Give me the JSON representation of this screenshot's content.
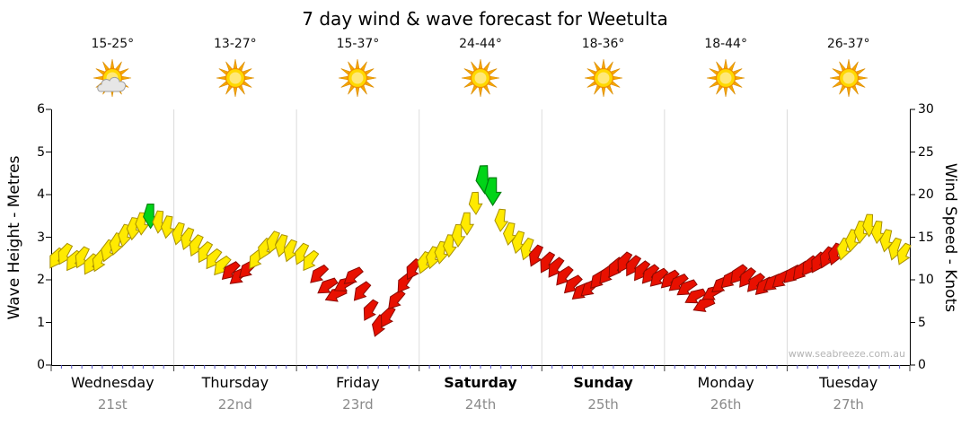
{
  "title": "7 day wind & wave forecast for Weetulta",
  "watermark": "www.seabreeze.com.au",
  "days": [
    {
      "name": "Wednesday",
      "date": "21st",
      "temp": "15-25°",
      "icon": "partly-cloudy",
      "bold": false
    },
    {
      "name": "Thursday",
      "date": "22nd",
      "temp": "13-27°",
      "icon": "sunny",
      "bold": false
    },
    {
      "name": "Friday",
      "date": "23rd",
      "temp": "15-37°",
      "icon": "sunny",
      "bold": false
    },
    {
      "name": "Saturday",
      "date": "24th",
      "temp": "24-44°",
      "icon": "sunny",
      "bold": true
    },
    {
      "name": "Sunday",
      "date": "25th",
      "temp": "18-36°",
      "icon": "sunny",
      "bold": true
    },
    {
      "name": "Monday",
      "date": "26th",
      "temp": "18-44°",
      "icon": "sunny",
      "bold": false
    },
    {
      "name": "Tuesday",
      "date": "27th",
      "temp": "26-37°",
      "icon": "sunny",
      "bold": false
    }
  ],
  "chart_data": {
    "type": "scatter",
    "marker": "wind-arrow",
    "title": "7 day wind & wave forecast for Weetulta",
    "x_axis": {
      "unit": "days",
      "categories": [
        "Wednesday 21st",
        "Thursday 22nd",
        "Friday 23rd",
        "Saturday 24th",
        "Sunday 25th",
        "Monday 26th",
        "Tuesday 27th"
      ]
    },
    "y_left": {
      "label": "Wave Height - Metres",
      "min": 0,
      "max": 6,
      "ticks": [
        "6",
        "5",
        "4",
        "3",
        "2",
        "1",
        "0"
      ]
    },
    "y_right": {
      "label": "Wind Speed - Knots",
      "min": 0,
      "max": 30,
      "ticks": [
        "30",
        "25",
        "20",
        "15",
        "10",
        "5",
        "0"
      ]
    },
    "colors": {
      "y": {
        "fill": "#FFEA00",
        "stroke": "#A89000"
      },
      "r": {
        "fill": "#E81000",
        "stroke": "#8C0A00"
      },
      "g": {
        "fill": "#00D418",
        "stroke": "#00800E"
      }
    },
    "points": [
      {
        "t": 0.04,
        "kn": 12.5,
        "c": "y",
        "a": 32
      },
      {
        "t": 0.11,
        "kn": 13,
        "c": "y",
        "a": 28
      },
      {
        "t": 0.18,
        "kn": 12.2,
        "c": "y",
        "a": 34
      },
      {
        "t": 0.25,
        "kn": 12.6,
        "c": "y",
        "a": 26
      },
      {
        "t": 0.32,
        "kn": 11.8,
        "c": "y",
        "a": 30
      },
      {
        "t": 0.39,
        "kn": 12.2,
        "c": "y",
        "a": 24
      },
      {
        "t": 0.46,
        "kn": 13.4,
        "c": "y",
        "a": 20
      },
      {
        "t": 0.53,
        "kn": 14.2,
        "c": "y",
        "a": 16
      },
      {
        "t": 0.6,
        "kn": 15.2,
        "c": "y",
        "a": 12
      },
      {
        "t": 0.67,
        "kn": 16,
        "c": "y",
        "a": 8
      },
      {
        "t": 0.74,
        "kn": 16.6,
        "c": "y",
        "a": 4
      },
      {
        "t": 0.81,
        "kn": 17.5,
        "c": "g",
        "a": 0,
        "sz": 1.1
      },
      {
        "t": 0.88,
        "kn": 16.8,
        "c": "y",
        "a": 6
      },
      {
        "t": 0.95,
        "kn": 16.2,
        "c": "y",
        "a": 10
      },
      {
        "t": 1.04,
        "kn": 15.4,
        "c": "y",
        "a": 15
      },
      {
        "t": 1.11,
        "kn": 14.8,
        "c": "y",
        "a": 20
      },
      {
        "t": 1.18,
        "kn": 14,
        "c": "y",
        "a": 25
      },
      {
        "t": 1.25,
        "kn": 13.2,
        "c": "y",
        "a": 30
      },
      {
        "t": 1.32,
        "kn": 12.4,
        "c": "y",
        "a": 35
      },
      {
        "t": 1.39,
        "kn": 11.6,
        "c": "y",
        "a": 40
      },
      {
        "t": 1.46,
        "kn": 11,
        "c": "r",
        "a": 45
      },
      {
        "t": 1.53,
        "kn": 10.4,
        "c": "r",
        "a": 50
      },
      {
        "t": 1.6,
        "kn": 11.2,
        "c": "r",
        "a": 45
      },
      {
        "t": 1.67,
        "kn": 12.4,
        "c": "y",
        "a": 35
      },
      {
        "t": 1.74,
        "kn": 13.6,
        "c": "y",
        "a": 25
      },
      {
        "t": 1.81,
        "kn": 14.4,
        "c": "y",
        "a": 20
      },
      {
        "t": 1.88,
        "kn": 14,
        "c": "y",
        "a": 15
      },
      {
        "t": 1.95,
        "kn": 13.4,
        "c": "y",
        "a": 20
      },
      {
        "t": 2.04,
        "kn": 13,
        "c": "y",
        "a": 25
      },
      {
        "t": 2.11,
        "kn": 12.2,
        "c": "y",
        "a": 35
      },
      {
        "t": 2.18,
        "kn": 10.6,
        "c": "r",
        "a": 45
      },
      {
        "t": 2.25,
        "kn": 9.2,
        "c": "r",
        "a": 55
      },
      {
        "t": 2.32,
        "kn": 8.2,
        "c": "r",
        "a": 65
      },
      {
        "t": 2.39,
        "kn": 9.4,
        "c": "r",
        "a": 60
      },
      {
        "t": 2.46,
        "kn": 10.4,
        "c": "r",
        "a": 50
      },
      {
        "t": 2.53,
        "kn": 8.6,
        "c": "r",
        "a": 40
      },
      {
        "t": 2.6,
        "kn": 6.4,
        "c": "r",
        "a": 30
      },
      {
        "t": 2.67,
        "kn": 4.6,
        "c": "r",
        "a": 20
      },
      {
        "t": 2.74,
        "kn": 5.6,
        "c": "r",
        "a": 30
      },
      {
        "t": 2.81,
        "kn": 7.6,
        "c": "r",
        "a": 40
      },
      {
        "t": 2.88,
        "kn": 9.6,
        "c": "r",
        "a": 35
      },
      {
        "t": 2.95,
        "kn": 11.2,
        "c": "r",
        "a": 30
      },
      {
        "t": 3.04,
        "kn": 12,
        "c": "y",
        "a": 20
      },
      {
        "t": 3.11,
        "kn": 12.6,
        "c": "y",
        "a": 15
      },
      {
        "t": 3.18,
        "kn": 13.2,
        "c": "y",
        "a": 10
      },
      {
        "t": 3.25,
        "kn": 14,
        "c": "y",
        "a": 5
      },
      {
        "t": 3.32,
        "kn": 15.2,
        "c": "y",
        "a": 2
      },
      {
        "t": 3.39,
        "kn": 16.6,
        "c": "y",
        "a": 0
      },
      {
        "t": 3.46,
        "kn": 19,
        "c": "y",
        "a": -2
      },
      {
        "t": 3.53,
        "kn": 21.8,
        "c": "g",
        "a": -2,
        "sz": 1.25
      },
      {
        "t": 3.6,
        "kn": 20.4,
        "c": "g",
        "a": 0,
        "sz": 1.25
      },
      {
        "t": 3.67,
        "kn": 17,
        "c": "y",
        "a": 5
      },
      {
        "t": 3.74,
        "kn": 15.4,
        "c": "y",
        "a": 10
      },
      {
        "t": 3.81,
        "kn": 14.4,
        "c": "y",
        "a": 15
      },
      {
        "t": 3.88,
        "kn": 13.6,
        "c": "y",
        "a": 20
      },
      {
        "t": 3.95,
        "kn": 12.8,
        "c": "r",
        "a": 25
      },
      {
        "t": 4.04,
        "kn": 12,
        "c": "r",
        "a": 30
      },
      {
        "t": 4.11,
        "kn": 11.4,
        "c": "r",
        "a": 35
      },
      {
        "t": 4.18,
        "kn": 10.4,
        "c": "r",
        "a": 40
      },
      {
        "t": 4.25,
        "kn": 9.4,
        "c": "r",
        "a": 45
      },
      {
        "t": 4.32,
        "kn": 8.6,
        "c": "r",
        "a": 50
      },
      {
        "t": 4.39,
        "kn": 9,
        "c": "r",
        "a": 48
      },
      {
        "t": 4.46,
        "kn": 10,
        "c": "r",
        "a": 42
      },
      {
        "t": 4.53,
        "kn": 10.6,
        "c": "r",
        "a": 38
      },
      {
        "t": 4.6,
        "kn": 11.4,
        "c": "r",
        "a": 34
      },
      {
        "t": 4.67,
        "kn": 12,
        "c": "r",
        "a": 30
      },
      {
        "t": 4.74,
        "kn": 11.6,
        "c": "r",
        "a": 32
      },
      {
        "t": 4.81,
        "kn": 11,
        "c": "r",
        "a": 36
      },
      {
        "t": 4.88,
        "kn": 10.6,
        "c": "r",
        "a": 40
      },
      {
        "t": 4.95,
        "kn": 10.2,
        "c": "r",
        "a": 44
      },
      {
        "t": 5.04,
        "kn": 10,
        "c": "r",
        "a": 45
      },
      {
        "t": 5.11,
        "kn": 9.6,
        "c": "r",
        "a": 50
      },
      {
        "t": 5.18,
        "kn": 9,
        "c": "r",
        "a": 55
      },
      {
        "t": 5.25,
        "kn": 8,
        "c": "r",
        "a": 60
      },
      {
        "t": 5.32,
        "kn": 7,
        "c": "r",
        "a": 65
      },
      {
        "t": 5.39,
        "kn": 8.4,
        "c": "r",
        "a": 60
      },
      {
        "t": 5.46,
        "kn": 9.4,
        "c": "r",
        "a": 52
      },
      {
        "t": 5.53,
        "kn": 10,
        "c": "r",
        "a": 46
      },
      {
        "t": 5.6,
        "kn": 10.6,
        "c": "r",
        "a": 40
      },
      {
        "t": 5.67,
        "kn": 10.2,
        "c": "r",
        "a": 38
      },
      {
        "t": 5.74,
        "kn": 9.6,
        "c": "r",
        "a": 42
      },
      {
        "t": 5.81,
        "kn": 9.2,
        "c": "r",
        "a": 46
      },
      {
        "t": 5.88,
        "kn": 9.6,
        "c": "r",
        "a": 50
      },
      {
        "t": 5.95,
        "kn": 10,
        "c": "r",
        "a": 48
      },
      {
        "t": 6.04,
        "kn": 10.6,
        "c": "r",
        "a": 45
      },
      {
        "t": 6.11,
        "kn": 11,
        "c": "r",
        "a": 40
      },
      {
        "t": 6.18,
        "kn": 11.6,
        "c": "r",
        "a": 35
      },
      {
        "t": 6.25,
        "kn": 12,
        "c": "r",
        "a": 30
      },
      {
        "t": 6.32,
        "kn": 12.6,
        "c": "r",
        "a": 25
      },
      {
        "t": 6.39,
        "kn": 13,
        "c": "r",
        "a": 20
      },
      {
        "t": 6.46,
        "kn": 13.6,
        "c": "y",
        "a": 15
      },
      {
        "t": 6.53,
        "kn": 14.6,
        "c": "y",
        "a": 10
      },
      {
        "t": 6.6,
        "kn": 15.6,
        "c": "y",
        "a": 6
      },
      {
        "t": 6.67,
        "kn": 16.4,
        "c": "y",
        "a": 2
      },
      {
        "t": 6.74,
        "kn": 15.6,
        "c": "y",
        "a": 6
      },
      {
        "t": 6.81,
        "kn": 14.6,
        "c": "y",
        "a": 12
      },
      {
        "t": 6.88,
        "kn": 13.6,
        "c": "y",
        "a": 18
      },
      {
        "t": 6.95,
        "kn": 13,
        "c": "y",
        "a": 24
      }
    ]
  }
}
